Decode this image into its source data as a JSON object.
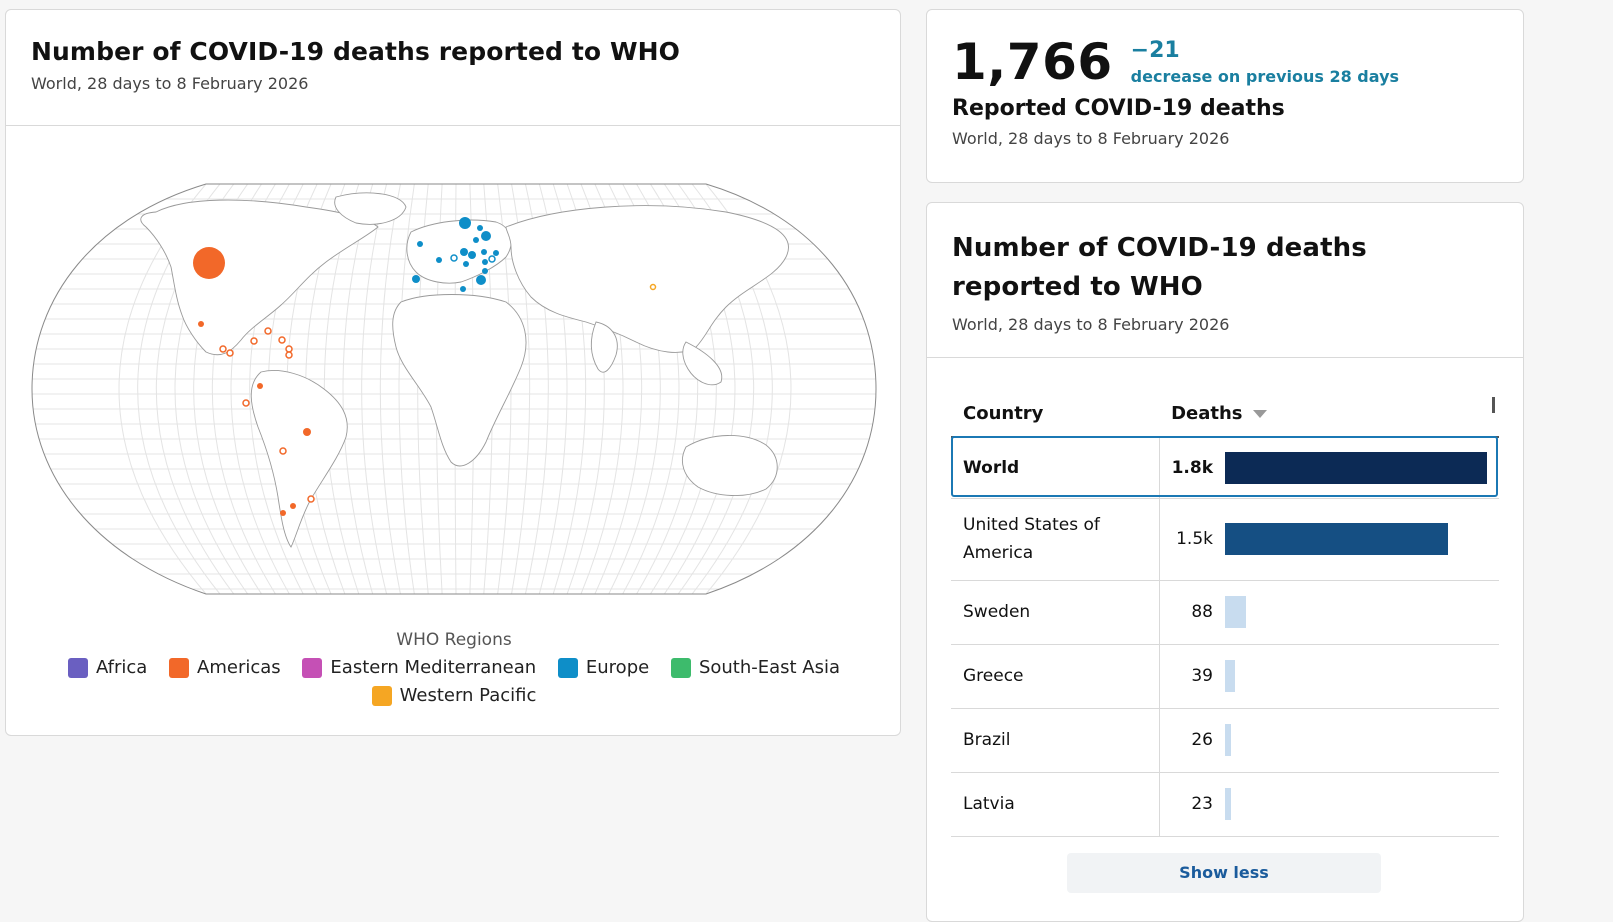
{
  "map_card": {
    "title": "Number of COVID-19 deaths reported to WHO",
    "subtitle": "World, 28 days to 8 February 2026",
    "legend_title": "WHO Regions",
    "legend": [
      {
        "label": "Africa",
        "color": "#6a5fc1"
      },
      {
        "label": "Americas",
        "color": "#f26829"
      },
      {
        "label": "Eastern Mediterranean",
        "color": "#c550b5"
      },
      {
        "label": "Europe",
        "color": "#0e8ec8"
      },
      {
        "label": "South-East Asia",
        "color": "#3dbb6c"
      },
      {
        "label": "Western Pacific",
        "color": "#f5a623"
      }
    ]
  },
  "stat_card": {
    "value": "1,766",
    "delta": "−21",
    "delta_text": "decrease on previous 28 days",
    "label": "Reported COVID-19 deaths",
    "subtitle": "World, 28 days to 8 February 2026"
  },
  "table_card": {
    "title": "Number of COVID-19 deaths reported to WHO",
    "subtitle": "World, 28 days to 8 February 2026",
    "col_country": "Country",
    "col_deaths": "Deaths",
    "show_less": "Show less",
    "rows": [
      {
        "country": "World",
        "deaths_label": "1.8k",
        "deaths": 1766,
        "color": "#0c2a55"
      },
      {
        "country": "United States of America",
        "deaths_label": "1.5k",
        "deaths": 1500,
        "color": "#154f83"
      },
      {
        "country": "Sweden",
        "deaths_label": "88",
        "deaths": 88,
        "color": "#c8dcef"
      },
      {
        "country": "Greece",
        "deaths_label": "39",
        "deaths": 39,
        "color": "#c8dcef"
      },
      {
        "country": "Brazil",
        "deaths_label": "26",
        "deaths": 26,
        "color": "#c8dcef"
      },
      {
        "country": "Latvia",
        "deaths_label": "23",
        "deaths": 23,
        "color": "#c8dcef"
      }
    ]
  }
}
